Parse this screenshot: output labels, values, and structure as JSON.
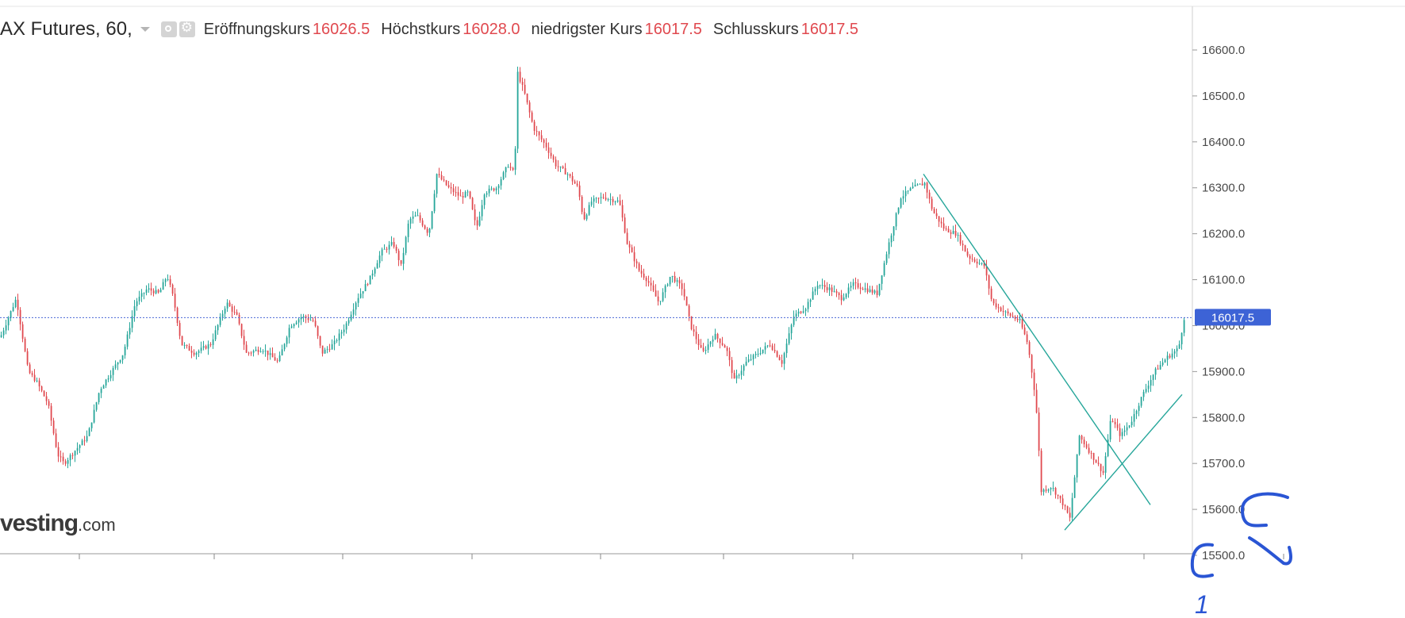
{
  "header": {
    "title": "AX Futures, 60,",
    "eye_icon": "eye-icon",
    "settings_icon": "gear-icon",
    "ohlc": [
      {
        "label": "Eröffnungskurs",
        "value": "16026.5"
      },
      {
        "label": "Höchstkurs",
        "value": "16028.0"
      },
      {
        "label": "niedrigster Kurs",
        "value": "16017.5"
      },
      {
        "label": "Schlusskurs",
        "value": "16017.5"
      }
    ]
  },
  "watermark": {
    "brand": "vesting",
    "suffix": ".com"
  },
  "annotations": {
    "mark_a": "1",
    "mark_b": "2"
  },
  "colors": {
    "up": "#26a69a",
    "down": "#e0494f",
    "price_line": "#4a67d6",
    "price_badge": "#3d63d6",
    "trend": "#26a69a",
    "ink": "#2a55d4"
  },
  "chart_data": {
    "type": "candlestick",
    "symbol": "AX Futures, 60,",
    "ylim": [
      15500,
      16650
    ],
    "yticks": [
      "16600.0",
      "16500.0",
      "16400.0",
      "16300.0",
      "16200.0",
      "16100.0",
      "16000.0",
      "15900.0",
      "15800.0",
      "15700.0",
      "15600.0",
      "15500.0"
    ],
    "last_price": 16017.5,
    "last_price_label": "16017.5",
    "close_path": [
      [
        0,
        15975
      ],
      [
        20,
        16060
      ],
      [
        35,
        15900
      ],
      [
        45,
        15880
      ],
      [
        60,
        15830
      ],
      [
        72,
        15720
      ],
      [
        80,
        15700
      ],
      [
        95,
        15730
      ],
      [
        110,
        15760
      ],
      [
        125,
        15860
      ],
      [
        140,
        15900
      ],
      [
        155,
        15940
      ],
      [
        170,
        16050
      ],
      [
        185,
        16080
      ],
      [
        200,
        16070
      ],
      [
        210,
        16110
      ],
      [
        218,
        16060
      ],
      [
        228,
        15960
      ],
      [
        245,
        15940
      ],
      [
        265,
        15960
      ],
      [
        285,
        16050
      ],
      [
        298,
        16020
      ],
      [
        310,
        15940
      ],
      [
        330,
        15950
      ],
      [
        350,
        15920
      ],
      [
        365,
        16000
      ],
      [
        380,
        16020
      ],
      [
        395,
        16010
      ],
      [
        405,
        15940
      ],
      [
        420,
        15960
      ],
      [
        435,
        16000
      ],
      [
        450,
        16060
      ],
      [
        465,
        16100
      ],
      [
        480,
        16160
      ],
      [
        495,
        16180
      ],
      [
        505,
        16130
      ],
      [
        515,
        16230
      ],
      [
        525,
        16240
      ],
      [
        540,
        16200
      ],
      [
        550,
        16330
      ],
      [
        565,
        16300
      ],
      [
        580,
        16280
      ],
      [
        590,
        16290
      ],
      [
        600,
        16210
      ],
      [
        610,
        16290
      ],
      [
        625,
        16300
      ],
      [
        640,
        16350
      ],
      [
        648,
        16330
      ],
      [
        652,
        16550
      ],
      [
        660,
        16510
      ],
      [
        672,
        16430
      ],
      [
        688,
        16390
      ],
      [
        700,
        16350
      ],
      [
        715,
        16330
      ],
      [
        728,
        16300
      ],
      [
        735,
        16230
      ],
      [
        745,
        16270
      ],
      [
        760,
        16280
      ],
      [
        780,
        16270
      ],
      [
        790,
        16180
      ],
      [
        805,
        16120
      ],
      [
        815,
        16100
      ],
      [
        830,
        16050
      ],
      [
        845,
        16110
      ],
      [
        860,
        16080
      ],
      [
        870,
        16000
      ],
      [
        885,
        15940
      ],
      [
        900,
        15980
      ],
      [
        915,
        15950
      ],
      [
        925,
        15880
      ],
      [
        940,
        15920
      ],
      [
        955,
        15940
      ],
      [
        970,
        15960
      ],
      [
        985,
        15920
      ],
      [
        1000,
        16020
      ],
      [
        1015,
        16040
      ],
      [
        1030,
        16090
      ],
      [
        1045,
        16080
      ],
      [
        1060,
        16060
      ],
      [
        1075,
        16090
      ],
      [
        1090,
        16080
      ],
      [
        1105,
        16070
      ],
      [
        1120,
        16180
      ],
      [
        1135,
        16280
      ],
      [
        1150,
        16300
      ],
      [
        1165,
        16310
      ],
      [
        1175,
        16250
      ],
      [
        1190,
        16210
      ],
      [
        1205,
        16200
      ],
      [
        1220,
        16150
      ],
      [
        1240,
        16130
      ],
      [
        1250,
        16050
      ],
      [
        1265,
        16030
      ],
      [
        1285,
        16010
      ],
      [
        1295,
        15960
      ],
      [
        1305,
        15840
      ],
      [
        1312,
        15640
      ],
      [
        1325,
        15650
      ],
      [
        1340,
        15610
      ],
      [
        1348,
        15580
      ],
      [
        1360,
        15760
      ],
      [
        1375,
        15720
      ],
      [
        1390,
        15680
      ],
      [
        1400,
        15800
      ],
      [
        1412,
        15760
      ],
      [
        1425,
        15790
      ],
      [
        1440,
        15850
      ],
      [
        1455,
        15900
      ],
      [
        1470,
        15930
      ],
      [
        1485,
        15950
      ],
      [
        1492,
        16017
      ]
    ],
    "trendlines": [
      {
        "from": [
          1164,
          16330
        ],
        "to": [
          1450,
          15610
        ]
      },
      {
        "from": [
          1342,
          15555
        ],
        "to": [
          1490,
          15850
        ]
      }
    ]
  }
}
